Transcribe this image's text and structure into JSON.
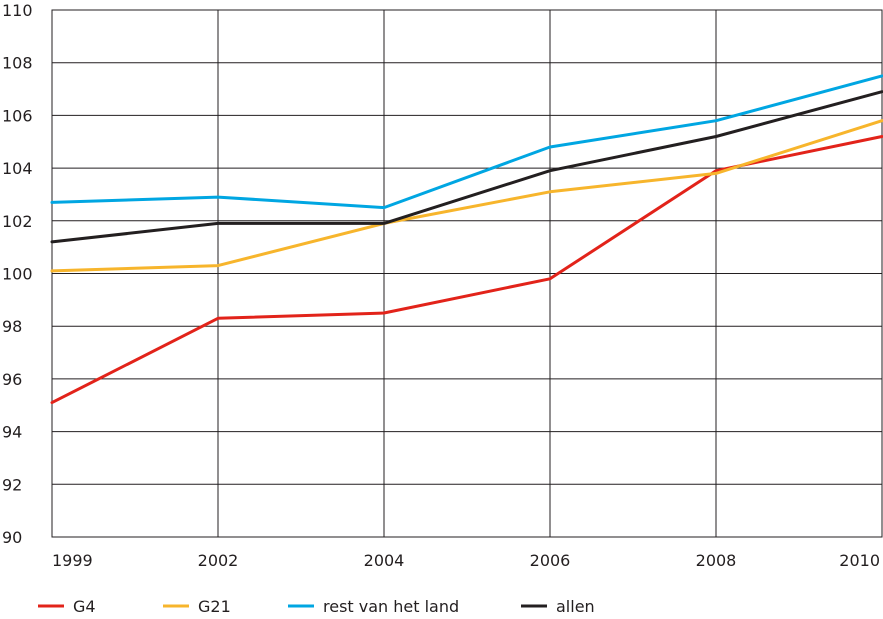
{
  "chart_data": {
    "type": "line",
    "title": "",
    "xlabel": "",
    "ylabel": "",
    "x": [
      "1999",
      "2002",
      "2004",
      "2006",
      "2008",
      "2010"
    ],
    "ylim": [
      90,
      110
    ],
    "yticks": [
      "90",
      "92",
      "94",
      "96",
      "98",
      "100",
      "102",
      "104",
      "106",
      "108",
      "110"
    ],
    "grid": true,
    "legend_position": "bottom",
    "series": [
      {
        "name": "G4",
        "color": "#e2231a",
        "values": [
          95.1,
          98.3,
          98.5,
          99.8,
          103.9,
          105.2
        ]
      },
      {
        "name": "G21",
        "color": "#f7b52c",
        "values": [
          100.1,
          100.3,
          101.9,
          103.1,
          103.8,
          105.8
        ]
      },
      {
        "name": "rest van het land",
        "color": "#00a6e2",
        "values": [
          102.7,
          102.9,
          102.5,
          104.8,
          105.8,
          107.5
        ]
      },
      {
        "name": "allen",
        "color": "#231f20",
        "values": [
          101.2,
          101.9,
          101.9,
          103.9,
          105.2,
          106.9
        ]
      }
    ]
  }
}
